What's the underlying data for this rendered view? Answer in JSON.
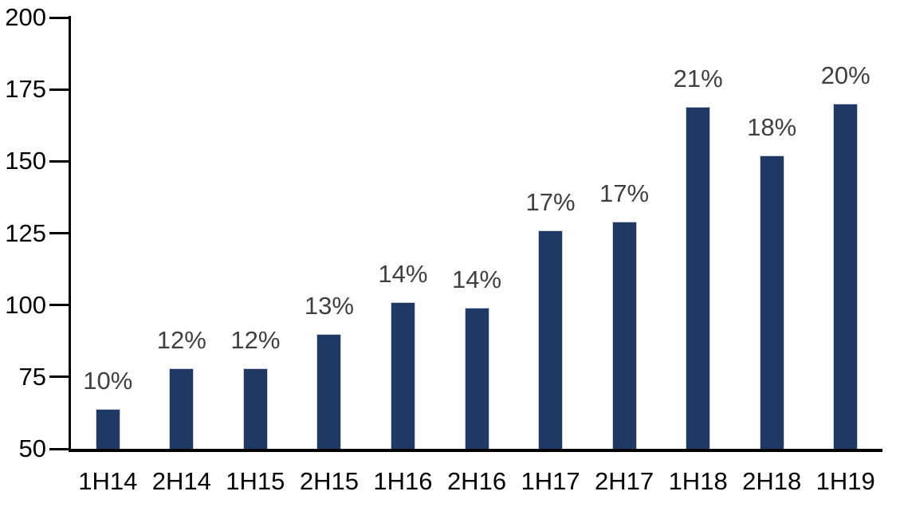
{
  "chart_data": {
    "type": "bar",
    "title": "",
    "xlabel": "",
    "ylabel": "",
    "categories": [
      "1H14",
      "2H14",
      "1H15",
      "2H15",
      "1H16",
      "2H16",
      "1H17",
      "2H17",
      "1H18",
      "2H18",
      "1H19"
    ],
    "values": [
      64,
      78,
      78,
      90,
      101,
      99,
      126,
      129,
      169,
      152,
      170
    ],
    "bar_labels": [
      "10%",
      "12%",
      "12%",
      "13%",
      "14%",
      "14%",
      "17%",
      "17%",
      "21%",
      "18%",
      "20%"
    ],
    "ylim": [
      50,
      200
    ],
    "yticks": [
      50,
      75,
      100,
      125,
      150,
      175,
      200
    ],
    "ytick_labels": [
      "50",
      "75",
      "100",
      "125",
      "150",
      "175",
      "200"
    ],
    "grid": false,
    "legend": null,
    "colors": {
      "bar_fill": "#1f3864",
      "bar_edge": "#c9cfdf",
      "data_label": "#404040",
      "axis_line": "#000000",
      "tick_label": "#000000",
      "background": "#ffffff"
    }
  }
}
